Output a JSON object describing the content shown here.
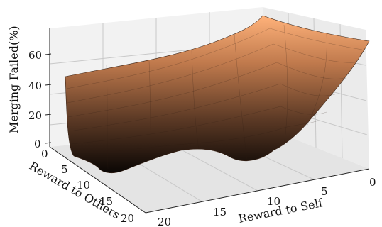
{
  "chart_data": {
    "type": "surface",
    "zlabel": "Merging Failed(%)",
    "ylabel": "Reward to Others",
    "xlabel": "Reward to Self",
    "z_ticks": [
      "0",
      "20",
      "40",
      "60"
    ],
    "others_ticks": [
      "0",
      "5",
      "10",
      "15",
      "20"
    ],
    "self_ticks": [
      "20",
      "15",
      "10",
      "5",
      "0"
    ],
    "zlim": [
      0,
      75
    ],
    "self_range": [
      0,
      20
    ],
    "others_range": [
      0,
      20
    ],
    "colormap": "copper",
    "grid": true,
    "samples_note": "approximate surface heights (%) read from figure",
    "corner_values": {
      "self0_others0": 70,
      "self20_others0": 42,
      "self20_others20": 3,
      "self0_others20": 28
    },
    "minima": [
      {
        "self": 12,
        "others": 20,
        "value": 2
      },
      {
        "self": 20,
        "others": 16,
        "value": 5
      }
    ]
  }
}
